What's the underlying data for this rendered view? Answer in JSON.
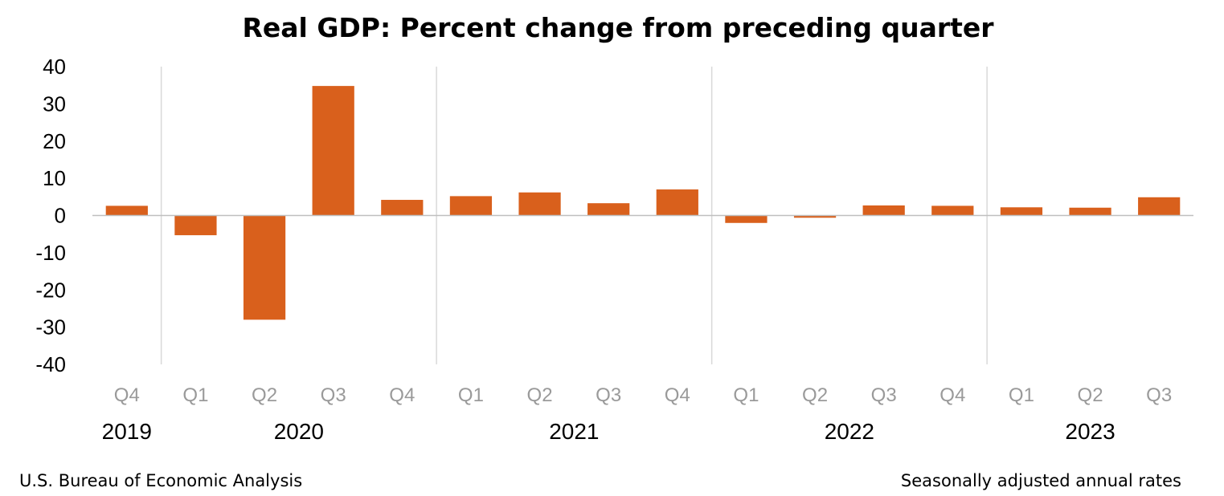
{
  "chart_data": {
    "type": "bar",
    "title": "Real GDP:  Percent change from preceding quarter",
    "categories": [
      "Q4",
      "Q1",
      "Q2",
      "Q3",
      "Q4",
      "Q1",
      "Q2",
      "Q3",
      "Q4",
      "Q1",
      "Q2",
      "Q3",
      "Q4",
      "Q1",
      "Q2",
      "Q3"
    ],
    "years": [
      {
        "label": "2019",
        "quarters": 1
      },
      {
        "label": "2020",
        "quarters": 4
      },
      {
        "label": "2021",
        "quarters": 4
      },
      {
        "label": "2022",
        "quarters": 4
      },
      {
        "label": "2023",
        "quarters": 3
      }
    ],
    "values": [
      2.6,
      -5.3,
      -28.0,
      34.8,
      4.2,
      5.2,
      6.2,
      3.3,
      7.0,
      -2.0,
      -0.6,
      2.7,
      2.6,
      2.2,
      2.1,
      4.9
    ],
    "ylim": [
      -40,
      40
    ],
    "yticks": [
      40,
      30,
      20,
      10,
      0,
      -10,
      -20,
      -30,
      -40
    ],
    "ytick_labels": [
      "40",
      "30",
      "20",
      "10",
      "0",
      "-10",
      "-20",
      "-30",
      "-40"
    ],
    "xlabel": "",
    "ylabel": "",
    "bar_color": "#D9601C",
    "grid": false,
    "year_separators": true
  },
  "footer": {
    "source": "U.S. Bureau of Economic Analysis",
    "note": "Seasonally adjusted annual rates"
  }
}
